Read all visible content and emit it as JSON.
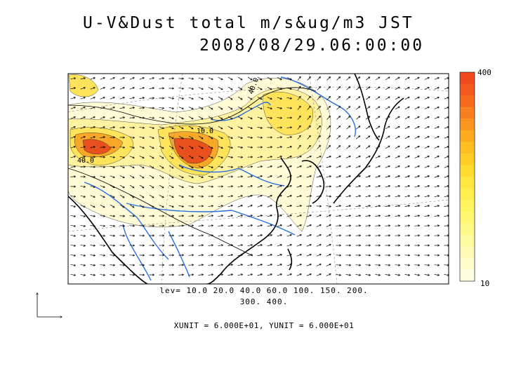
{
  "title": {
    "line1": "U-V&Dust total m/s&ug/m3 JST",
    "line2": "2008/08/29.06:00:00"
  },
  "colorbar": {
    "max_label": "400",
    "min_label": "10",
    "colors": [
      "#f04a1e",
      "#f45a1e",
      "#f66a1e",
      "#f88020",
      "#fa9620",
      "#fcaa20",
      "#fdbe22",
      "#fece26",
      "#ffdc30",
      "#ffe640",
      "#fff050",
      "#fff560",
      "#fff870",
      "#fffa88",
      "#fffba0",
      "#fffcb8",
      "#fffdcc",
      "#fffee0"
    ]
  },
  "contour_labels": [
    "40.0",
    "10.0",
    "40.0"
  ],
  "levels": {
    "line1": "lev= 10.0 20.0 40.0 60.0 100. 150. 200.",
    "line2": "300. 400."
  },
  "units": "XUNIT = 6.000E+01, YUNIT = 6.000E+01",
  "palette": {
    "low": "#fffad0",
    "mid": "#ffe25a",
    "high": "#f4a020",
    "peak": "#e8501e",
    "river": "#2a6fe0",
    "coast": "#000000"
  }
}
